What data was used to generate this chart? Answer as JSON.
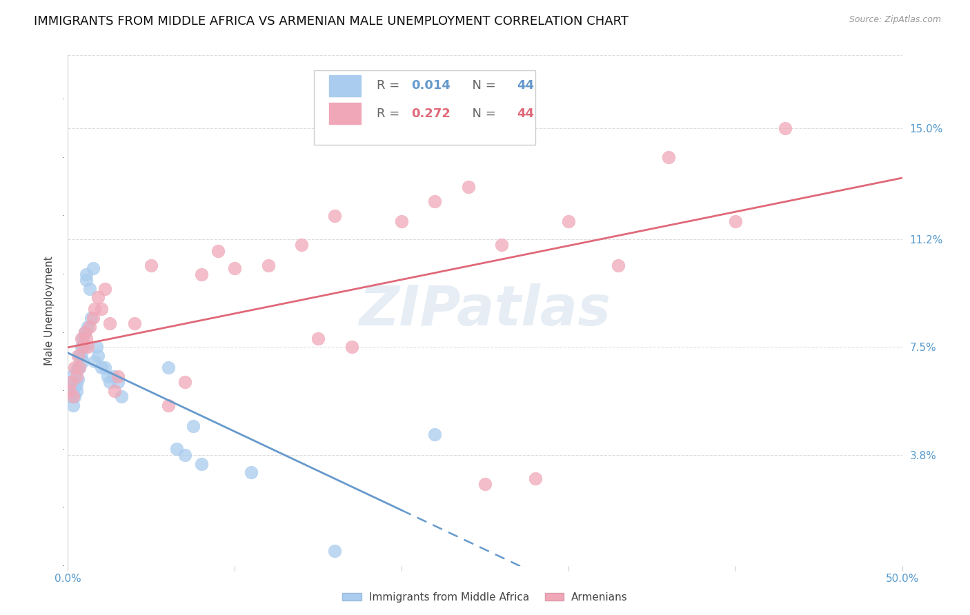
{
  "title": "IMMIGRANTS FROM MIDDLE AFRICA VS ARMENIAN MALE UNEMPLOYMENT CORRELATION CHART",
  "source": "Source: ZipAtlas.com",
  "ylabel": "Male Unemployment",
  "xlim": [
    0.0,
    0.5
  ],
  "ylim": [
    0.0,
    0.175
  ],
  "ytick_positions": [
    0.038,
    0.075,
    0.112,
    0.15
  ],
  "ytick_labels": [
    "3.8%",
    "7.5%",
    "11.2%",
    "15.0%"
  ],
  "watermark": "ZIPatlas",
  "blue_R": 0.014,
  "blue_N": 44,
  "pink_R": 0.272,
  "pink_N": 44,
  "blue_line_color": "#6699cc",
  "pink_line_color": "#e06878",
  "blue_scatter_color": "#aaccee",
  "pink_scatter_color": "#f0a8b8",
  "blue_x": [
    0.001,
    0.002,
    0.002,
    0.003,
    0.003,
    0.004,
    0.004,
    0.005,
    0.005,
    0.005,
    0.006,
    0.006,
    0.007,
    0.007,
    0.008,
    0.008,
    0.009,
    0.009,
    0.01,
    0.01,
    0.011,
    0.011,
    0.012,
    0.013,
    0.014,
    0.015,
    0.016,
    0.017,
    0.018,
    0.02,
    0.022,
    0.024,
    0.025,
    0.027,
    0.03,
    0.032,
    0.06,
    0.065,
    0.07,
    0.075,
    0.08,
    0.11,
    0.16,
    0.22
  ],
  "blue_y": [
    0.062,
    0.058,
    0.065,
    0.06,
    0.055,
    0.063,
    0.058,
    0.067,
    0.062,
    0.06,
    0.068,
    0.064,
    0.072,
    0.068,
    0.075,
    0.072,
    0.078,
    0.07,
    0.08,
    0.075,
    0.098,
    0.1,
    0.082,
    0.095,
    0.085,
    0.102,
    0.07,
    0.075,
    0.072,
    0.068,
    0.068,
    0.065,
    0.063,
    0.065,
    0.063,
    0.058,
    0.068,
    0.04,
    0.038,
    0.048,
    0.035,
    0.032,
    0.005,
    0.045
  ],
  "pink_x": [
    0.001,
    0.002,
    0.003,
    0.004,
    0.005,
    0.006,
    0.007,
    0.008,
    0.009,
    0.01,
    0.011,
    0.012,
    0.013,
    0.015,
    0.016,
    0.018,
    0.02,
    0.022,
    0.025,
    0.028,
    0.03,
    0.04,
    0.05,
    0.06,
    0.07,
    0.08,
    0.09,
    0.1,
    0.12,
    0.14,
    0.16,
    0.2,
    0.22,
    0.24,
    0.26,
    0.3,
    0.33,
    0.36,
    0.4,
    0.43,
    0.15,
    0.17,
    0.25,
    0.28
  ],
  "pink_y": [
    0.06,
    0.063,
    0.058,
    0.068,
    0.065,
    0.072,
    0.068,
    0.078,
    0.075,
    0.08,
    0.078,
    0.075,
    0.082,
    0.085,
    0.088,
    0.092,
    0.088,
    0.095,
    0.083,
    0.06,
    0.065,
    0.083,
    0.103,
    0.055,
    0.063,
    0.1,
    0.108,
    0.102,
    0.103,
    0.11,
    0.12,
    0.118,
    0.125,
    0.13,
    0.11,
    0.118,
    0.103,
    0.14,
    0.118,
    0.15,
    0.078,
    0.075,
    0.028,
    0.03
  ],
  "background_color": "#ffffff",
  "grid_color": "#dddddd",
  "axis_color": "#cccccc",
  "title_fontsize": 13,
  "label_fontsize": 11,
  "tick_fontsize": 11,
  "right_tick_color": "#5599cc",
  "legend_label_color": "#666666",
  "bottom_legend_labels": [
    "Immigrants from Middle Africa",
    "Armenians"
  ]
}
